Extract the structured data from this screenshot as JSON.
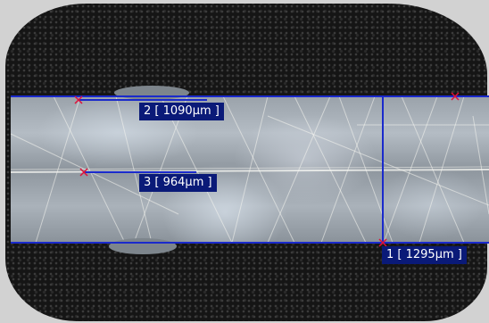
{
  "measurements": [
    {
      "label": "1 [ 1295µm ]"
    },
    {
      "label": "2 [ 1090µm ]"
    },
    {
      "label": "3 [ 964µm ]"
    }
  ],
  "colors": {
    "measure_line": "#1a2acc",
    "label_bg": "#0a1a78",
    "label_text": "#ffffff",
    "marker": "#e0103a"
  }
}
